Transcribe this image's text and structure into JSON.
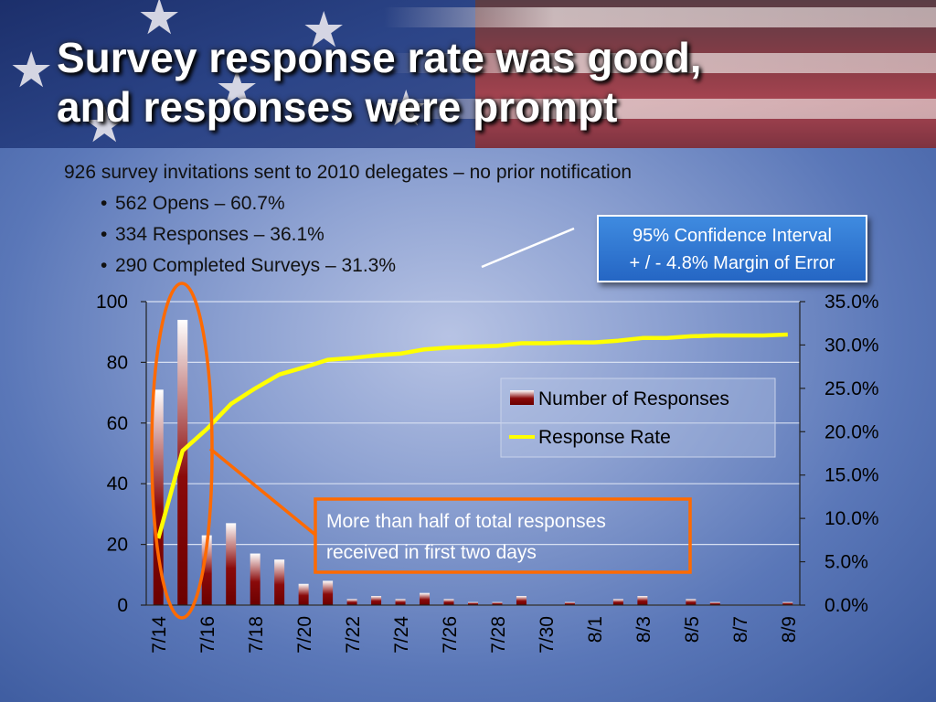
{
  "title_line1": "Survey response rate was good,",
  "title_line2": "and responses were prompt",
  "intro": "926 survey invitations sent to 2010 delegates – no prior notification",
  "bullets": [
    "562 Opens – 60.7%",
    "334 Responses – 36.1%",
    "290 Completed Surveys – 31.3%"
  ],
  "ci_box": {
    "line1": "95% Confidence Interval",
    "line2": "+ / - 4.8% Margin of Error"
  },
  "callout": {
    "line1": "More than half of total responses",
    "line2": "received in first two days"
  },
  "colors": {
    "bar_dark": "#6b0000",
    "bar_light": "#ffffff",
    "line": "#ffff00",
    "callout": "#ff6a00",
    "ci_box": "#2f77d4"
  },
  "chart_data": {
    "type": "bar",
    "categories": [
      "7/14",
      "7/15",
      "7/16",
      "7/17",
      "7/18",
      "7/19",
      "7/20",
      "7/21",
      "7/22",
      "7/23",
      "7/24",
      "7/25",
      "7/26",
      "7/27",
      "7/28",
      "7/29",
      "7/30",
      "7/31",
      "8/1",
      "8/2",
      "8/3",
      "8/4",
      "8/5",
      "8/6",
      "8/7",
      "8/8",
      "8/9"
    ],
    "tick_labels": [
      "7/14",
      "7/16",
      "7/18",
      "7/20",
      "7/22",
      "7/24",
      "7/26",
      "7/28",
      "7/30",
      "8/1",
      "8/3",
      "8/5",
      "8/7",
      "8/9"
    ],
    "series": [
      {
        "name": "Number of Responses",
        "type": "bar",
        "axis": "left",
        "values": [
          71,
          94,
          23,
          27,
          17,
          15,
          7,
          8,
          2,
          3,
          2,
          4,
          2,
          1,
          1,
          3,
          0,
          1,
          0,
          2,
          3,
          0,
          2,
          1,
          0,
          0,
          1
        ]
      },
      {
        "name": "Response Rate",
        "type": "line",
        "axis": "right",
        "values": [
          7.7,
          17.8,
          20.3,
          23.2,
          25.0,
          26.6,
          27.4,
          28.3,
          28.5,
          28.8,
          29.0,
          29.5,
          29.7,
          29.8,
          29.9,
          30.2,
          30.2,
          30.3,
          30.3,
          30.5,
          30.8,
          30.8,
          31.0,
          31.1,
          31.1,
          31.1,
          31.2
        ]
      }
    ],
    "ylim_left": [
      0,
      100
    ],
    "yticks_left": [
      0,
      20,
      40,
      60,
      80,
      100
    ],
    "ylim_right": [
      0,
      35
    ],
    "yticks_right": [
      "0.0%",
      "5.0%",
      "10.0%",
      "15.0%",
      "20.0%",
      "25.0%",
      "30.0%",
      "35.0%"
    ],
    "grid": true,
    "legend": "right"
  }
}
